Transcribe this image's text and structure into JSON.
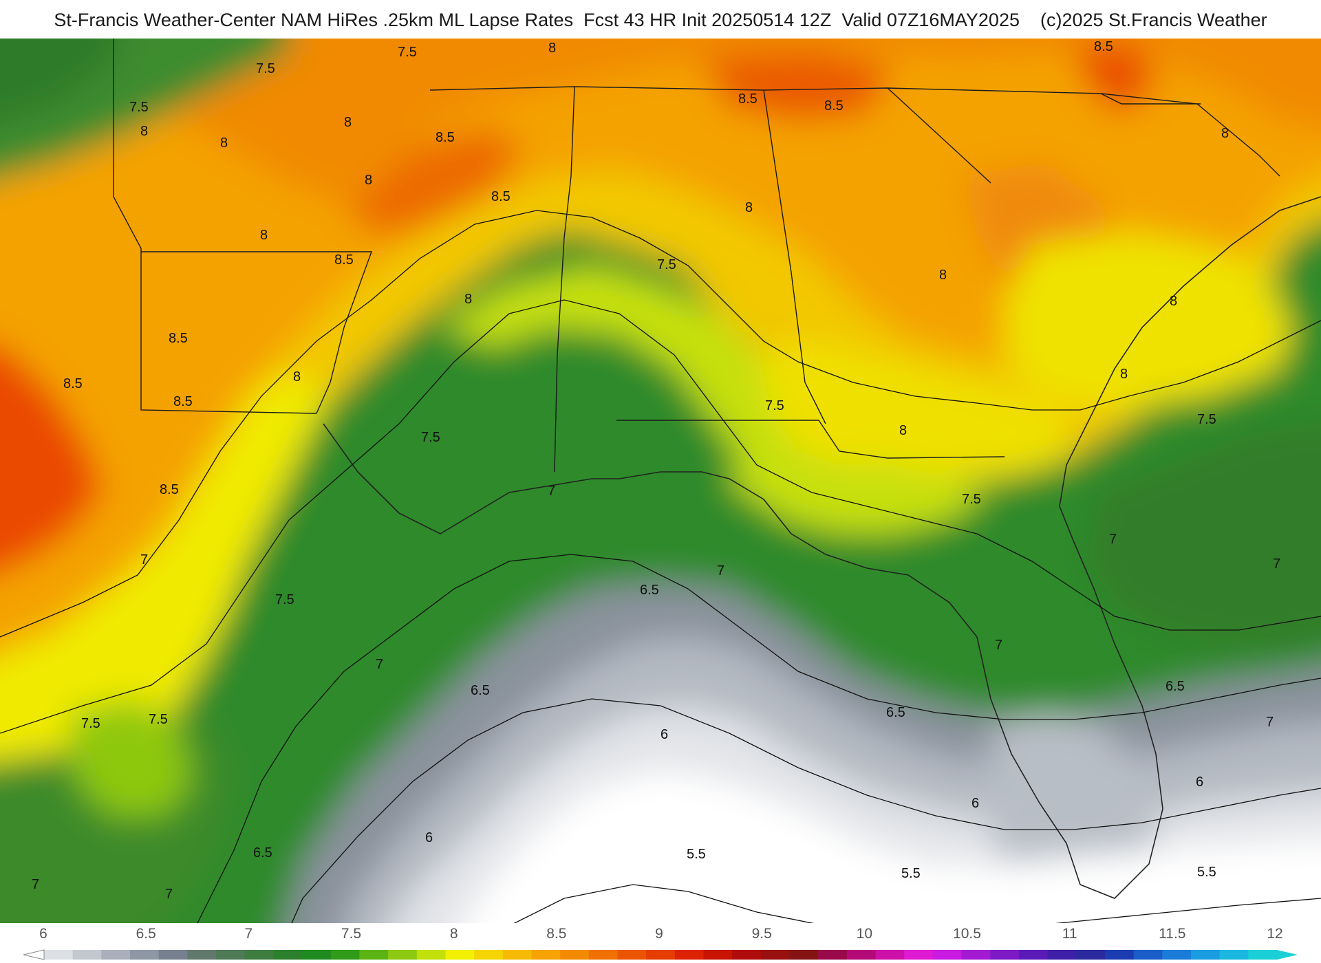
{
  "header": {
    "title": "St-Francis Weather-Center NAM HiRes .25km ML Lapse Rates  Fcst 43 HR Init 20250514 12Z  Valid 07Z16MAY2025    (c)2025 St.Francis Weather"
  },
  "map": {
    "contour_labels": [
      "5.5",
      "6",
      "6.5",
      "7",
      "7.5",
      "8",
      "8.5"
    ],
    "labels": [
      {
        "id": "l1",
        "text": "7.5"
      },
      {
        "id": "l2",
        "text": "7.5"
      },
      {
        "id": "l3",
        "text": "7.5"
      },
      {
        "id": "l4",
        "text": "8"
      },
      {
        "id": "l5",
        "text": "8"
      },
      {
        "id": "l6",
        "text": "8"
      },
      {
        "id": "l7",
        "text": "8"
      },
      {
        "id": "l8",
        "text": "8"
      },
      {
        "id": "l9",
        "text": "8.5"
      },
      {
        "id": "l10",
        "text": "8.5"
      },
      {
        "id": "l11",
        "text": "8.5"
      },
      {
        "id": "l12",
        "text": "8.5"
      },
      {
        "id": "l13",
        "text": "8.5"
      },
      {
        "id": "l14",
        "text": "8.5"
      },
      {
        "id": "l15",
        "text": "8.5"
      },
      {
        "id": "l16",
        "text": "8"
      },
      {
        "id": "l17",
        "text": "8"
      },
      {
        "id": "l18",
        "text": "8.5"
      },
      {
        "id": "l19",
        "text": "8.5"
      },
      {
        "id": "l20",
        "text": "8.5"
      },
      {
        "id": "l21",
        "text": "8"
      },
      {
        "id": "l22",
        "text": "8"
      },
      {
        "id": "l23",
        "text": "8"
      },
      {
        "id": "l24",
        "text": "8"
      },
      {
        "id": "l25",
        "text": "7.5"
      },
      {
        "id": "l26",
        "text": "7.5"
      },
      {
        "id": "l27",
        "text": "7.5"
      },
      {
        "id": "l28",
        "text": "8"
      },
      {
        "id": "l29",
        "text": "8"
      },
      {
        "id": "l30",
        "text": "7.5"
      },
      {
        "id": "l31",
        "text": "7.5"
      },
      {
        "id": "l32",
        "text": "7"
      },
      {
        "id": "l33",
        "text": "7"
      },
      {
        "id": "l34",
        "text": "7"
      },
      {
        "id": "l35",
        "text": "7"
      },
      {
        "id": "l36",
        "text": "7"
      },
      {
        "id": "l37",
        "text": "8"
      },
      {
        "id": "l38",
        "text": "7.5"
      },
      {
        "id": "l39",
        "text": "7"
      },
      {
        "id": "l40",
        "text": "7.5"
      },
      {
        "id": "l41",
        "text": "7.5"
      },
      {
        "id": "l42",
        "text": "6.5"
      },
      {
        "id": "l43",
        "text": "7"
      },
      {
        "id": "l44",
        "text": "7"
      },
      {
        "id": "l45",
        "text": "6.5"
      },
      {
        "id": "l46",
        "text": "6.5"
      },
      {
        "id": "l47",
        "text": "6.5"
      },
      {
        "id": "l48",
        "text": "6.5"
      },
      {
        "id": "l49",
        "text": "6"
      },
      {
        "id": "l50",
        "text": "6"
      },
      {
        "id": "l51",
        "text": "6"
      },
      {
        "id": "l52",
        "text": "6"
      },
      {
        "id": "l53",
        "text": "5.5"
      },
      {
        "id": "l54",
        "text": "5.5"
      },
      {
        "id": "l55",
        "text": "5.5"
      },
      {
        "id": "l56",
        "text": "7"
      },
      {
        "id": "l57",
        "text": "7"
      }
    ]
  },
  "legend": {
    "ticks": [
      "6",
      "6.5",
      "7",
      "7.5",
      "8",
      "8.5",
      "9",
      "9.5",
      "10",
      "10.5",
      "11",
      "11.5",
      "12"
    ],
    "colors": [
      "#dcdfe4",
      "#c3c8d0",
      "#a9b0bb",
      "#8e97a4",
      "#76808e",
      "#627a6d",
      "#4e7a55",
      "#3e7d40",
      "#2c7f2c",
      "#1f8a1f",
      "#2f9b18",
      "#5bb314",
      "#8cc910",
      "#c2e00a",
      "#f0f000",
      "#f5d500",
      "#f6bb00",
      "#f6a300",
      "#f38b00",
      "#f07000",
      "#eb5500",
      "#e53c00",
      "#dc2200",
      "#c81400",
      "#b00c0c",
      "#981010",
      "#841414",
      "#9a0a4a",
      "#b40a78",
      "#cc10a8",
      "#de1ad2",
      "#c81ae0",
      "#a21ad2",
      "#7d1ac6",
      "#5a1ab8",
      "#3f1ea8",
      "#2a2a9e",
      "#1a3cb0",
      "#1a5cc8",
      "#1a7cd8",
      "#1a9ce0",
      "#1ab8e0",
      "#1ad0d6"
    ]
  }
}
